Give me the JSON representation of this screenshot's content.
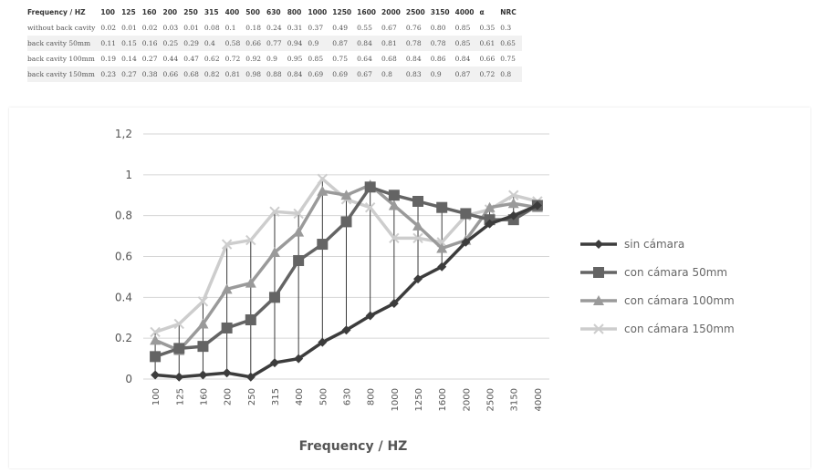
{
  "table": {
    "header": [
      "Frequency / HZ",
      "100",
      "125",
      "160",
      "200",
      "250",
      "315",
      "400",
      "500",
      "630",
      "800",
      "1000",
      "1250",
      "1600",
      "2000",
      "2500",
      "3150",
      "4000",
      "α",
      "NRC"
    ],
    "rows": [
      {
        "label": "without back cavity",
        "values": [
          "0.02",
          "0.01",
          "0.02",
          "0.03",
          "0.01",
          "0.08",
          "0.1",
          "0.18",
          "0.24",
          "0.31",
          "0.37",
          "0.49",
          "0.55",
          "0.67",
          "0.76",
          "0.80",
          "0.85",
          "0.35",
          "0.3"
        ]
      },
      {
        "label": "back cavity 50mm",
        "values": [
          "0.11",
          "0.15",
          "0.16",
          "0.25",
          "0.29",
          "0.4",
          "0.58",
          "0.66",
          "0.77",
          "0.94",
          "0.9",
          "0.87",
          "0.84",
          "0.81",
          "0.78",
          "0.78",
          "0.85",
          "0.61",
          "0.65"
        ]
      },
      {
        "label": "back cavity 100mm",
        "values": [
          "0.19",
          "0.14",
          "0.27",
          "0.44",
          "0.47",
          "0.62",
          "0.72",
          "0.92",
          "0.9",
          "0.95",
          "0.85",
          "0.75",
          "0.64",
          "0.68",
          "0.84",
          "0.86",
          "0.84",
          "0.66",
          "0.75"
        ]
      },
      {
        "label": "back cavity 150mm",
        "values": [
          "0.23",
          "0.27",
          "0.38",
          "0.66",
          "0.68",
          "0.82",
          "0.81",
          "0.98",
          "0.88",
          "0.84",
          "0.69",
          "0.69",
          "0.67",
          "0.8",
          "0.83",
          "0.9",
          "0.87",
          "0.72",
          "0.8"
        ]
      }
    ]
  },
  "chart_data": {
    "type": "line",
    "title": "",
    "xlabel": "Frequency / HZ",
    "ylabel": "",
    "categories": [
      "100",
      "125",
      "160",
      "200",
      "250",
      "315",
      "400",
      "500",
      "630",
      "800",
      "1000",
      "1250",
      "1600",
      "2000",
      "2500",
      "3150",
      "4000"
    ],
    "ylim": [
      0,
      1.2
    ],
    "yticks": [
      "0",
      "0.2",
      "0.4",
      "0.6",
      "0.8",
      "1",
      "1,2"
    ],
    "grid": true,
    "legend_position": "right",
    "series": [
      {
        "name": "sin cámara",
        "color": "#3c3c3c",
        "marker": "diamond",
        "values": [
          0.02,
          0.01,
          0.02,
          0.03,
          0.01,
          0.08,
          0.1,
          0.18,
          0.24,
          0.31,
          0.37,
          0.49,
          0.55,
          0.67,
          0.76,
          0.8,
          0.85
        ]
      },
      {
        "name": "con cámara 50mm",
        "color": "#646464",
        "marker": "square",
        "values": [
          0.11,
          0.15,
          0.16,
          0.25,
          0.29,
          0.4,
          0.58,
          0.66,
          0.77,
          0.94,
          0.9,
          0.87,
          0.84,
          0.81,
          0.78,
          0.78,
          0.85
        ]
      },
      {
        "name": "con cámara 100mm",
        "color": "#9a9a9a",
        "marker": "triangle",
        "values": [
          0.19,
          0.14,
          0.27,
          0.44,
          0.47,
          0.62,
          0.72,
          0.92,
          0.9,
          0.95,
          0.85,
          0.75,
          0.64,
          0.68,
          0.84,
          0.86,
          0.84
        ]
      },
      {
        "name": "con cámara 150mm",
        "color": "#cdcdcd",
        "marker": "cross",
        "values": [
          0.23,
          0.27,
          0.38,
          0.66,
          0.68,
          0.82,
          0.81,
          0.98,
          0.88,
          0.84,
          0.69,
          0.69,
          0.67,
          0.8,
          0.83,
          0.9,
          0.87
        ]
      }
    ]
  }
}
